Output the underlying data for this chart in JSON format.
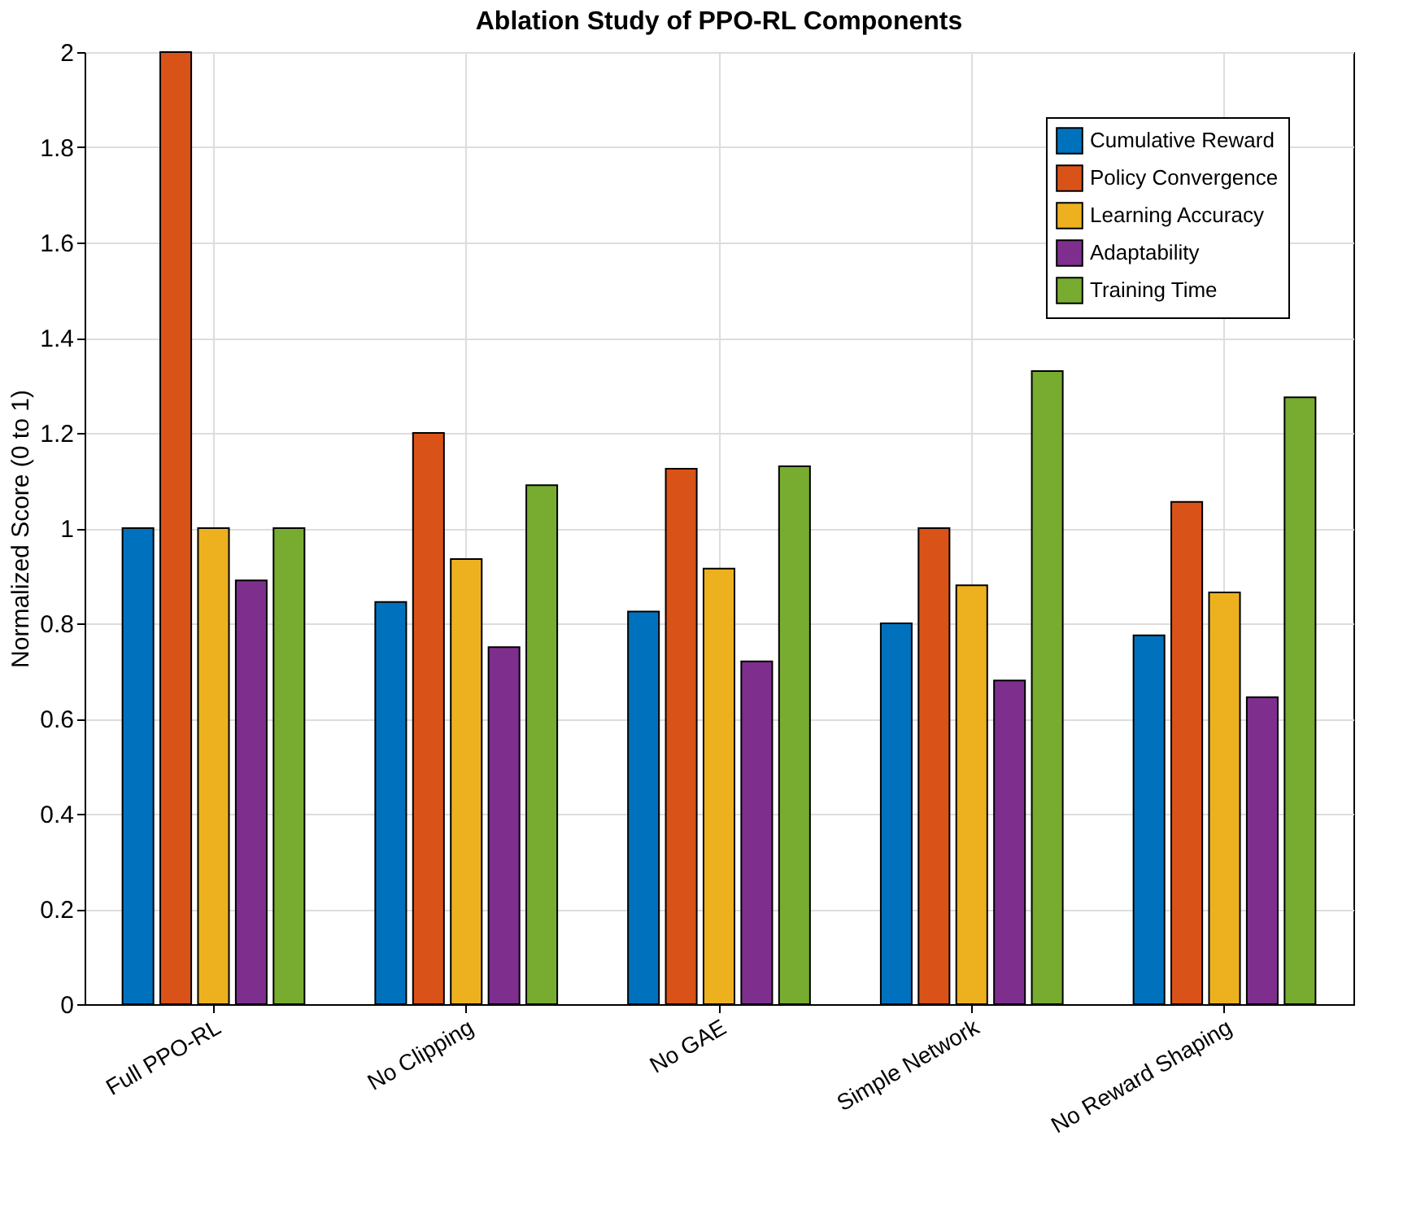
{
  "chart_data": {
    "type": "bar",
    "title": "Ablation Study of PPO-RL Components",
    "ylabel": "Normalized Score (0 to 1)",
    "categories": [
      "Full PPO-RL",
      "No Clipping",
      "No GAE",
      "Simple Network",
      "No Reward Shaping"
    ],
    "series": [
      {
        "name": "Cumulative Reward",
        "color": "#0072bd",
        "values": [
          1.0,
          0.845,
          0.825,
          0.8,
          0.775
        ]
      },
      {
        "name": "Policy Convergence",
        "color": "#d95319",
        "values": [
          2.0,
          1.2,
          1.125,
          1.0,
          1.055
        ]
      },
      {
        "name": "Learning Accuracy",
        "color": "#edb120",
        "values": [
          1.0,
          0.935,
          0.915,
          0.88,
          0.865
        ]
      },
      {
        "name": "Adaptability",
        "color": "#7e2f8e",
        "values": [
          0.89,
          0.75,
          0.72,
          0.68,
          0.645
        ]
      },
      {
        "name": "Training Time",
        "color": "#77ac30",
        "values": [
          1.0,
          1.09,
          1.13,
          1.33,
          1.275
        ]
      }
    ],
    "ylim": [
      0,
      2
    ],
    "yticks": [
      0,
      0.2,
      0.4,
      0.6,
      0.8,
      1,
      1.2,
      1.4,
      1.6,
      1.8,
      2
    ],
    "grid": true,
    "legend": "top right"
  }
}
